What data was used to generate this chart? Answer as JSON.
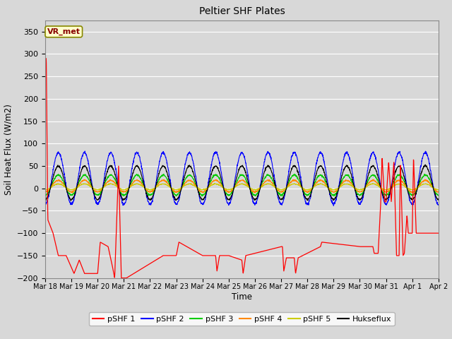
{
  "title": "Peltier SHF Plates",
  "ylabel": "Soil Heat Flux (W/m2)",
  "xlabel": "Time",
  "ylim": [
    -200,
    375
  ],
  "yticks": [
    -200,
    -150,
    -100,
    -50,
    0,
    50,
    100,
    150,
    200,
    250,
    300,
    350
  ],
  "background_color": "#d8d8d8",
  "plot_bg_color": "#d8d8d8",
  "grid_color": "#ffffff",
  "annotation_text": "VR_met",
  "annotation_bg": "#ffffcc",
  "annotation_border": "#888800",
  "annotation_text_color": "#880000",
  "colors": {
    "pSHF1": "#ff0000",
    "pSHF2": "#0000ff",
    "pSHF3": "#00cc00",
    "pSHF4": "#ff8800",
    "pSHF5": "#cccc00",
    "Hukseflux": "#000000"
  },
  "legend_labels": [
    "pSHF 1",
    "pSHF 2",
    "pSHF 3",
    "pSHF 4",
    "pSHF 5",
    "Hukseflux"
  ],
  "xtick_labels": [
    "Mar 18",
    "Mar 19",
    "Mar 20",
    "Mar 21",
    "Mar 22",
    "Mar 23",
    "Mar 24",
    "Mar 25",
    "Mar 26",
    "Mar 27",
    "Mar 28",
    "Mar 29",
    "Mar 30",
    "Mar 31",
    "Apr 1",
    "Apr 2"
  ],
  "n_days": 15,
  "pts_per_day": 144
}
